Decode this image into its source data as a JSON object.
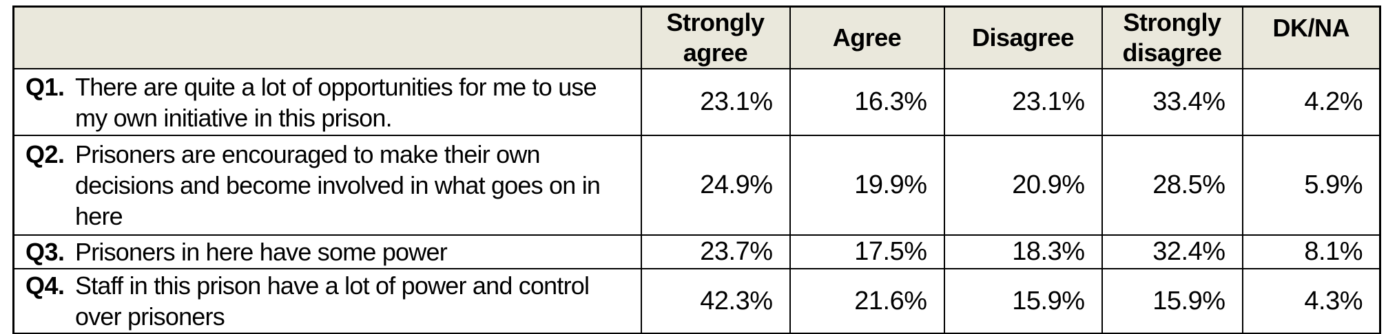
{
  "colors": {
    "header_bg": "#EAE8DC",
    "border": "#000000",
    "text": "#000000",
    "page_bg": "#FFFFFF"
  },
  "table": {
    "columns": [
      "Strongly agree",
      "Agree",
      "Disagree",
      "Strongly disagree",
      "DK/NA"
    ],
    "rows": [
      {
        "id": "Q1.",
        "question": "There are quite a lot of opportunities for me to use my own initiative in this prison.",
        "values": [
          "23.1%",
          "16.3%",
          "23.1%",
          "33.4%",
          "4.2%"
        ]
      },
      {
        "id": "Q2.",
        "question": "Prisoners are encouraged to make their own decisions and become involved in what goes on in here",
        "values": [
          "24.9%",
          "19.9%",
          "20.9%",
          "28.5%",
          "5.9%"
        ]
      },
      {
        "id": "Q3.",
        "question": "Prisoners in here have some power",
        "values": [
          "23.7%",
          "17.5%",
          "18.3%",
          "32.4%",
          "8.1%"
        ]
      },
      {
        "id": "Q4.",
        "question": "Staff in this prison have a lot of power and control over prisoners",
        "values": [
          "42.3%",
          "21.6%",
          "15.9%",
          "15.9%",
          "4.3%"
        ]
      }
    ]
  }
}
